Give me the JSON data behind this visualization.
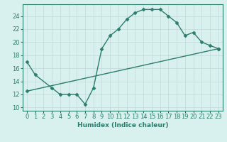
{
  "line1_x": [
    0,
    1,
    3,
    4,
    5,
    6,
    7,
    8,
    9,
    10,
    11,
    12,
    13,
    14,
    15,
    16,
    17,
    18,
    19,
    20,
    21,
    22,
    23
  ],
  "line1_y": [
    17,
    15,
    13,
    12,
    12,
    12,
    10.5,
    13,
    19,
    21,
    22,
    23.5,
    24.5,
    25,
    25,
    25,
    24,
    23,
    21,
    21.5,
    20,
    19.5,
    19
  ],
  "line2_x": [
    0,
    23
  ],
  "line2_y": [
    12.5,
    19
  ],
  "line_color": "#2d7d6e",
  "bg_color": "#d8f0ee",
  "grid_color": "#c0d8d8",
  "xlabel": "Humidex (Indice chaleur)",
  "xlim": [
    -0.5,
    23.5
  ],
  "ylim": [
    9.5,
    25.8
  ],
  "yticks": [
    10,
    12,
    14,
    16,
    18,
    20,
    22,
    24
  ],
  "xticks": [
    0,
    1,
    2,
    3,
    4,
    5,
    6,
    7,
    8,
    9,
    10,
    11,
    12,
    13,
    14,
    15,
    16,
    17,
    18,
    19,
    20,
    21,
    22,
    23
  ],
  "marker": "D",
  "markersize": 2.5,
  "linewidth": 1.0,
  "xlabel_fontsize": 6.5,
  "tick_fontsize": 6.0
}
